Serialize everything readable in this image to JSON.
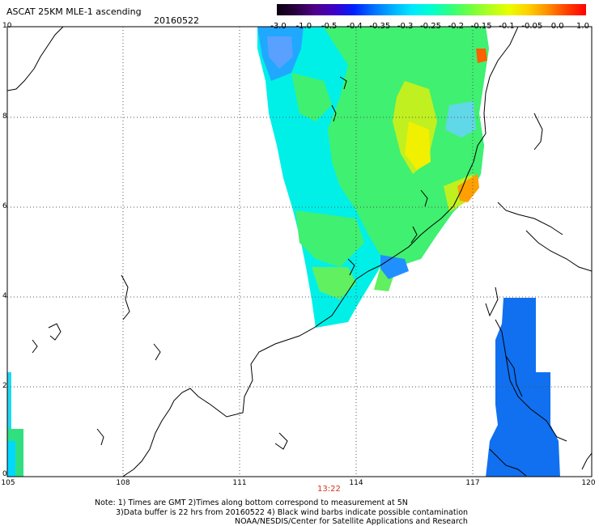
{
  "title": "ASCAT 25KM MLE-1 ascending",
  "date": "20160522",
  "time_label": "13:22",
  "notes": [
    "Note: 1) Times are GMT 2)Times along bottom correspond to measurement at 5N",
    "3)Data buffer is 22 hrs from 20160522 4) Black wind barbs indicate possible contamination",
    "NOAA/NESDIS/Center for Satellite Applications and Research"
  ],
  "colorbar": {
    "labels": [
      "-3.0",
      "-1.0",
      "-0.5",
      "-0.4",
      "-0.35",
      "-0.3",
      "-0.25",
      "-0.2",
      "-0.15",
      "-0.1",
      "-0.05",
      "0.0",
      "1.0"
    ],
    "colors": [
      "#0a0010",
      "#2a0040",
      "#50008a",
      "#3c00c8",
      "#0020ff",
      "#0070ff",
      "#00b0ff",
      "#00e8ff",
      "#00ffd0",
      "#30ff80",
      "#70ff40",
      "#b0ff20",
      "#e8ff00",
      "#ffd000",
      "#ff9000",
      "#ff4000",
      "#ff0000"
    ]
  },
  "map": {
    "x_ticks": [
      "105",
      "108",
      "111",
      "114",
      "117",
      "120"
    ],
    "y_ticks": [
      "10",
      "8",
      "6",
      "4",
      "2",
      "0"
    ],
    "lon_range": [
      105,
      120
    ],
    "lat_range": [
      0,
      10
    ]
  }
}
